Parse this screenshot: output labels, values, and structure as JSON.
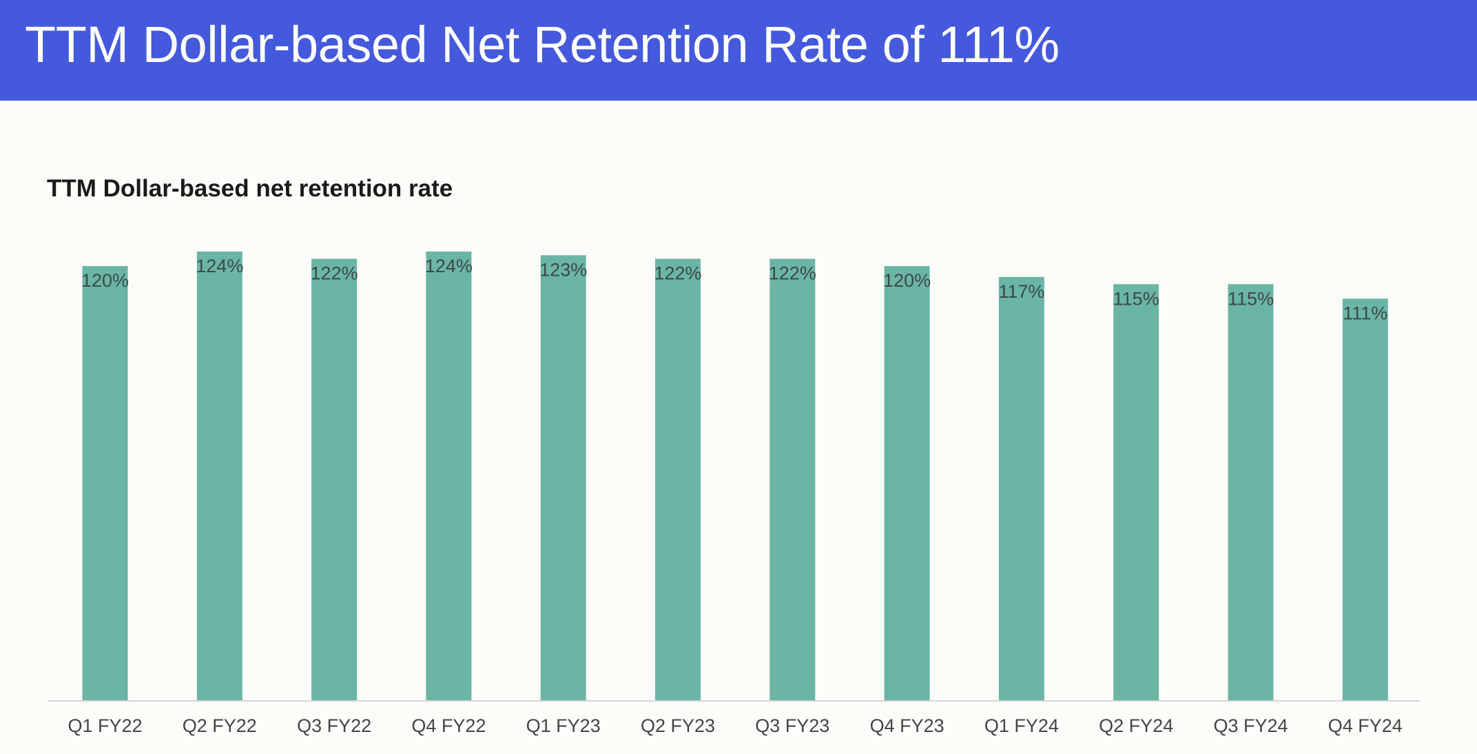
{
  "header": {
    "title": "TTM Dollar-based Net Retention Rate of 111%"
  },
  "colors": {
    "banner": "#4559dd",
    "bar": "#6bb5a5",
    "background": "#fdfcf8"
  },
  "chart_data": {
    "type": "bar",
    "title": "TTM Dollar-based net retention rate",
    "xlabel": "",
    "ylabel": "",
    "grid": false,
    "ylim": [
      0,
      130
    ],
    "categories": [
      "Q1 FY22",
      "Q2 FY22",
      "Q3 FY22",
      "Q4 FY22",
      "Q1 FY23",
      "Q2 FY23",
      "Q3 FY23",
      "Q4 FY23",
      "Q1 FY24",
      "Q2 FY24",
      "Q3 FY24",
      "Q4 FY24"
    ],
    "values": [
      120,
      124,
      122,
      124,
      123,
      122,
      122,
      120,
      117,
      115,
      115,
      111
    ],
    "data_labels": [
      "120%",
      "124%",
      "122%",
      "124%",
      "123%",
      "122%",
      "122%",
      "120%",
      "117%",
      "115%",
      "115%",
      "111%"
    ]
  }
}
